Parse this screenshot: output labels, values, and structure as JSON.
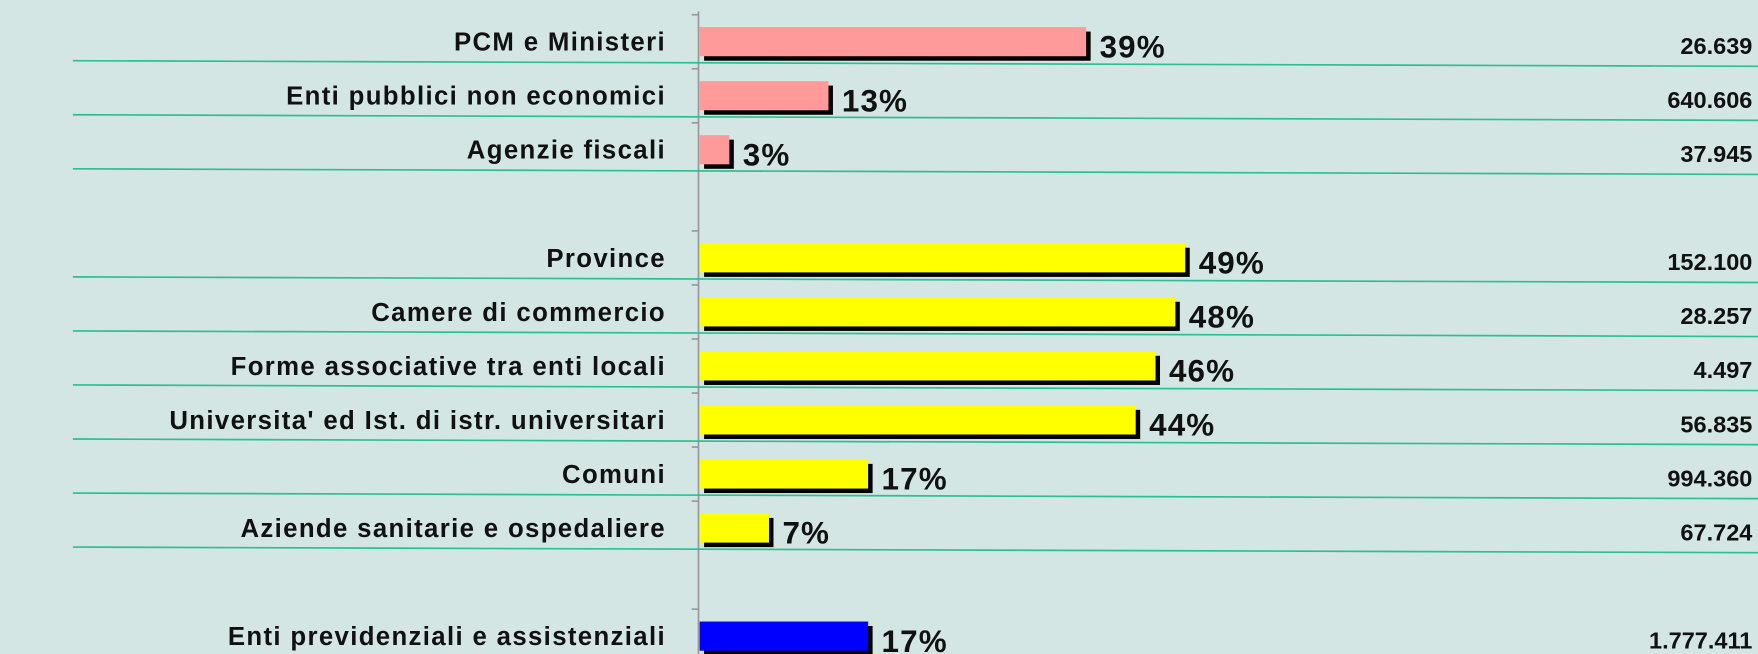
{
  "chart_data": {
    "type": "bar",
    "orientation": "horizontal",
    "xlim": [
      0,
      100
    ],
    "groups": [
      {
        "color": "#ff9a9a",
        "categories": [
          "PCM e Ministeri",
          "Enti pubblici non economici",
          "Agenzie fiscali"
        ],
        "values": [
          39,
          13,
          3
        ],
        "value_labels": [
          "39%",
          "13%",
          "3%"
        ],
        "totals": [
          "26.639",
          "640.606",
          "37.945"
        ]
      },
      {
        "color": "#ffff00",
        "categories": [
          "Province",
          "Camere di commercio",
          "Forme associative tra enti locali",
          "Universita' ed Ist. di istr. universitari",
          "Comuni",
          "Aziende sanitarie e ospedaliere"
        ],
        "values": [
          49,
          48,
          46,
          44,
          17,
          7
        ],
        "value_labels": [
          "49%",
          "48%",
          "46%",
          "44%",
          "17%",
          "7%"
        ],
        "totals": [
          "152.100",
          "28.257",
          "4.497",
          "56.835",
          "994.360",
          "67.724"
        ]
      },
      {
        "color": "#0000ff",
        "categories": [
          "Enti previdenziali e assistenziali"
        ],
        "values": [
          17
        ],
        "value_labels": [
          "17%"
        ],
        "totals": [
          "1.777.411"
        ]
      }
    ]
  }
}
